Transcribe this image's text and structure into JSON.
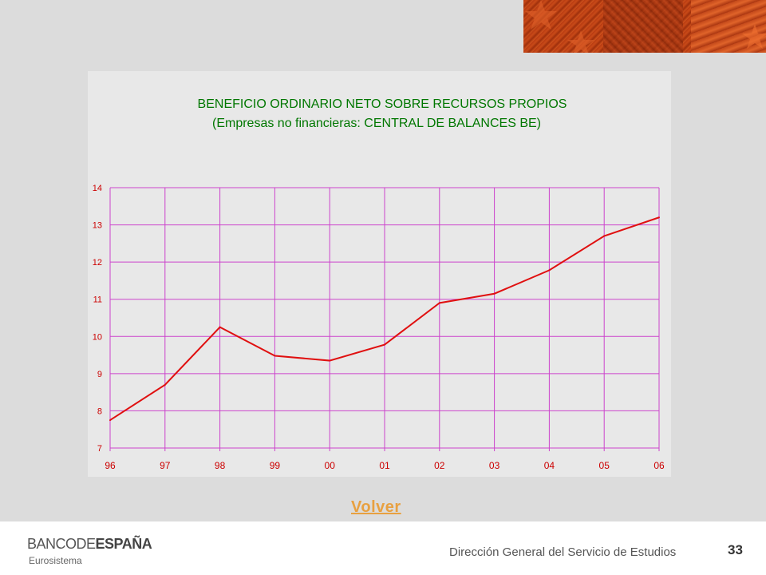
{
  "chart_data": {
    "type": "line",
    "title": "BENEFICIO ORDINARIO NETO SOBRE RECURSOS PROPIOS",
    "subtitle": "(Empresas no financieras: CENTRAL DE BALANCES BE)",
    "categories": [
      "96",
      "97",
      "98",
      "99",
      "00",
      "01",
      "02",
      "03",
      "04",
      "05",
      "06"
    ],
    "series": [
      {
        "values": [
          7.75,
          8.7,
          10.25,
          9.48,
          9.35,
          9.78,
          10.9,
          11.15,
          11.78,
          12.7,
          13.2
        ],
        "color": "#e01010"
      }
    ],
    "yticks": [
      "7",
      "8",
      "9",
      "10",
      "11",
      "12",
      "13",
      "14"
    ],
    "ylim": [
      7,
      14
    ],
    "grid": true,
    "grid_color": "#cc44cc",
    "title_color": "#007700",
    "tick_color": "#cc0000"
  },
  "nav": {
    "back_label": "Volver"
  },
  "footer": {
    "logo_part1": "BANCO",
    "logo_part2": "DE",
    "logo_part3": "ESPAÑA",
    "logo_sub": "Eurosistema",
    "department": "Dirección General del Servicio de Estudios",
    "page_number": "33"
  }
}
